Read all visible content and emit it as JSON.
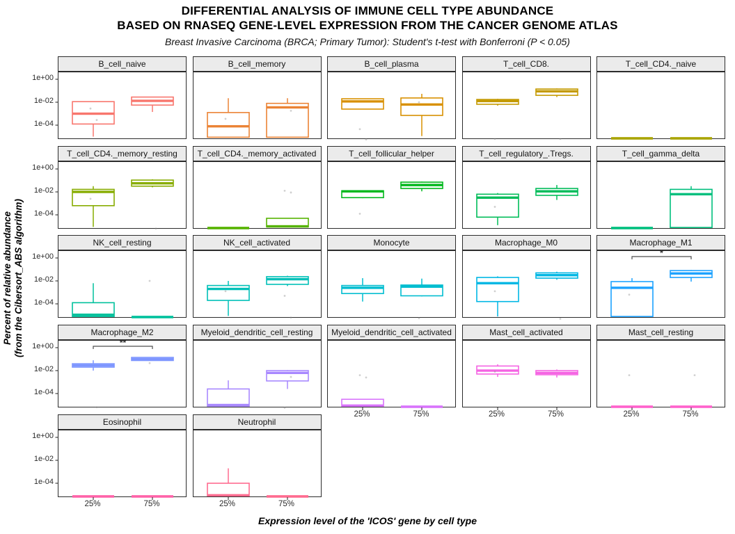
{
  "header": {
    "title_line1": "DIFFERENTIAL ANALYSIS OF IMMUNE CELL TYPE ABUNDANCE",
    "title_line2": "BASED ON RNASEQ GENE-LEVEL EXPRESSION FROM THE CANCER GENOME ATLAS",
    "subtitle": "Breast Invasive Carcinoma (BRCA; Primary Tumor): Student's t-test with Bonferroni (P < 0.05)"
  },
  "axes": {
    "y_title_line1": "Percent of relative abundance",
    "y_title_line2": "(from the Cibersort_ABS algorithm)",
    "x_title": "Expression level of the 'ICOS' gene by cell type",
    "y_tick_labels": [
      "1e+00",
      "1e-02",
      "1e-04"
    ],
    "x_tick_labels": [
      "25%",
      "75%"
    ]
  },
  "chart_data": {
    "type": "boxplot",
    "layout": "faceted grid, 5 columns, 22 panels, shared log10 y-axis",
    "y_scale": "log10 of percent relative abundance",
    "x_categories": [
      "25%",
      "75%"
    ],
    "y_ticks": [
      {
        "label": "1e+00",
        "log10": 0
      },
      {
        "label": "1e-02",
        "log10": -2
      },
      {
        "label": "1e-04",
        "log10": -4
      }
    ],
    "facets": [
      {
        "label": "B_cell_naive",
        "color": "#F8766D",
        "significance": null,
        "boxes": [
          {
            "group": "25%",
            "whisker_lo": -5.0,
            "q1": -3.9,
            "median": -3.0,
            "q3": -1.95,
            "whisker_hi": -1.95
          },
          {
            "group": "75%",
            "whisker_lo": -2.85,
            "q1": -2.25,
            "median": -1.88,
            "q3": -1.55,
            "whisker_hi": -1.55
          }
        ],
        "dots": [
          {
            "group": 0,
            "value": -2.55
          },
          {
            "group": 0,
            "value": -3.55
          }
        ]
      },
      {
        "label": "B_cell_memory",
        "color": "#EB8335",
        "significance": null,
        "boxes": [
          {
            "group": "25%",
            "whisker_lo": -5.05,
            "q1": -5.05,
            "median": -4.1,
            "q3": -2.9,
            "whisker_hi": -1.65
          },
          {
            "group": "75%",
            "whisker_lo": -5.05,
            "q1": -5.05,
            "median": -2.45,
            "q3": -2.1,
            "whisker_hi": -1.65
          }
        ],
        "dots": [
          {
            "group": 0,
            "value": -3.45
          },
          {
            "group": 1,
            "value": -2.75
          }
        ]
      },
      {
        "label": "B_cell_plasma",
        "color": "#D89000",
        "significance": null,
        "boxes": [
          {
            "group": "25%",
            "whisker_lo": -2.6,
            "q1": -2.6,
            "median": -1.93,
            "q3": -1.7,
            "whisker_hi": -1.7
          },
          {
            "group": "75%",
            "whisker_lo": -4.95,
            "q1": -3.15,
            "median": -2.2,
            "q3": -1.63,
            "whisker_hi": -1.27
          }
        ],
        "dots": [
          {
            "group": 0,
            "value": -4.35
          },
          {
            "group": 0,
            "value": -5.25
          },
          {
            "group": 1,
            "value": -2.0
          }
        ]
      },
      {
        "label": "T_cell_CD8.",
        "color": "#C49A00",
        "significance": null,
        "boxes": [
          {
            "group": "25%",
            "whisker_lo": -2.3,
            "q1": -2.18,
            "median": -1.9,
            "q3": -1.76,
            "whisker_hi": -1.7
          },
          {
            "group": "75%",
            "whisker_lo": -1.55,
            "q1": -1.4,
            "median": -1.05,
            "q3": -0.85,
            "whisker_hi": -0.8
          }
        ],
        "dots": [
          {
            "group": 0,
            "value": -5.2
          },
          {
            "group": 1,
            "value": -5.2
          }
        ]
      },
      {
        "label": "T_cell_CD4._naive",
        "color": "#A9A400",
        "significance": null,
        "boxes": [
          {
            "group": "25%",
            "whisker_lo": -5.15,
            "q1": -5.15,
            "median": -5.15,
            "q3": -5.15,
            "whisker_hi": -5.15
          },
          {
            "group": "75%",
            "whisker_lo": -5.15,
            "q1": -5.15,
            "median": -5.15,
            "q3": -5.15,
            "whisker_hi": -5.15
          }
        ],
        "dots": []
      },
      {
        "label": "T_cell_CD4._memory_resting",
        "color": "#87AC00",
        "significance": null,
        "boxes": [
          {
            "group": "25%",
            "whisker_lo": -5.05,
            "q1": -3.2,
            "median": -2.0,
            "q3": -1.78,
            "whisker_hi": -1.5
          },
          {
            "group": "75%",
            "whisker_lo": -1.6,
            "q1": -1.5,
            "median": -1.25,
            "q3": -0.97,
            "whisker_hi": -0.9
          }
        ],
        "dots": [
          {
            "group": 0,
            "value": -2.6
          },
          {
            "group": 1,
            "value": -5.2
          }
        ]
      },
      {
        "label": "T_cell_CD4._memory_activated",
        "color": "#55B300",
        "significance": null,
        "boxes": [
          {
            "group": "25%",
            "whisker_lo": -5.15,
            "q1": -5.15,
            "median": -5.15,
            "q3": -5.15,
            "whisker_hi": -5.15
          },
          {
            "group": "75%",
            "whisker_lo": -5.05,
            "q1": -5.05,
            "median": -5.0,
            "q3": -4.3,
            "whisker_hi": -4.3
          }
        ],
        "dots": [
          {
            "group": 1,
            "value": -1.9
          },
          {
            "group": 1,
            "value": -2.05
          }
        ]
      },
      {
        "label": "T_cell_follicular_helper",
        "color": "#00B81B",
        "significance": null,
        "boxes": [
          {
            "group": "25%",
            "whisker_lo": -2.55,
            "q1": -2.5,
            "median": -1.95,
            "q3": -1.9,
            "whisker_hi": -1.85
          },
          {
            "group": "75%",
            "whisker_lo": -1.95,
            "q1": -1.7,
            "median": -1.4,
            "q3": -1.15,
            "whisker_hi": -1.1
          }
        ],
        "dots": [
          {
            "group": 0,
            "value": -3.9
          }
        ]
      },
      {
        "label": "T_cell_regulatory_.Tregs.",
        "color": "#00BC59",
        "significance": null,
        "boxes": [
          {
            "group": "25%",
            "whisker_lo": -4.9,
            "q1": -4.2,
            "median": -2.5,
            "q3": -2.2,
            "whisker_hi": -2.1
          },
          {
            "group": "75%",
            "whisker_lo": -2.7,
            "q1": -2.3,
            "median": -1.95,
            "q3": -1.7,
            "whisker_hi": -1.4
          }
        ],
        "dots": [
          {
            "group": 0,
            "value": -3.3
          }
        ]
      },
      {
        "label": "T_cell_gamma_delta",
        "color": "#00BF7D",
        "significance": null,
        "boxes": [
          {
            "group": "25%",
            "whisker_lo": -5.15,
            "q1": -5.15,
            "median": -5.15,
            "q3": -5.15,
            "whisker_hi": -5.15
          },
          {
            "group": "75%",
            "whisker_lo": -5.1,
            "q1": -5.1,
            "median": -2.2,
            "q3": -1.78,
            "whisker_hi": -1.5
          }
        ],
        "dots": []
      },
      {
        "label": "NK_cell_resting",
        "color": "#00C19C",
        "significance": null,
        "boxes": [
          {
            "group": "25%",
            "whisker_lo": -5.1,
            "q1": -5.1,
            "median": -4.95,
            "q3": -3.9,
            "whisker_hi": -2.2
          },
          {
            "group": "75%",
            "whisker_lo": -5.15,
            "q1": -5.15,
            "median": -5.15,
            "q3": -5.15,
            "whisker_hi": -5.15
          }
        ],
        "dots": [
          {
            "group": 1,
            "value": -2.0
          }
        ]
      },
      {
        "label": "NK_cell_activated",
        "color": "#00C0B8",
        "significance": null,
        "boxes": [
          {
            "group": "25%",
            "whisker_lo": -5.05,
            "q1": -3.7,
            "median": -2.7,
            "q3": -2.4,
            "whisker_hi": -2.0
          },
          {
            "group": "75%",
            "whisker_lo": -2.45,
            "q1": -2.3,
            "median": -1.85,
            "q3": -1.63,
            "whisker_hi": -1.55
          }
        ],
        "dots": [
          {
            "group": 1,
            "value": -3.3
          },
          {
            "group": 1,
            "value": -5.2
          },
          {
            "group": 0,
            "value": -2.9
          }
        ]
      },
      {
        "label": "Monocyte",
        "color": "#00BDD0",
        "significance": null,
        "boxes": [
          {
            "group": "25%",
            "whisker_lo": -3.8,
            "q1": -3.1,
            "median": -2.6,
            "q3": -2.4,
            "whisker_hi": -1.76
          },
          {
            "group": "75%",
            "whisker_lo": -3.35,
            "q1": -3.3,
            "median": -2.5,
            "q3": -2.36,
            "whisker_hi": -1.8
          }
        ],
        "dots": [
          {
            "group": 1,
            "value": -5.25
          }
        ]
      },
      {
        "label": "Macrophage_M0",
        "color": "#00B7E4",
        "significance": null,
        "boxes": [
          {
            "group": "25%",
            "whisker_lo": -5.1,
            "q1": -3.8,
            "median": -2.2,
            "q3": -1.7,
            "whisker_hi": -1.6
          },
          {
            "group": "75%",
            "whisker_lo": -1.9,
            "q1": -1.76,
            "median": -1.5,
            "q3": -1.3,
            "whisker_hi": -1.2
          }
        ],
        "dots": [
          {
            "group": 0,
            "value": -2.9
          },
          {
            "group": 1,
            "value": -5.3
          }
        ]
      },
      {
        "label": "Macrophage_M1",
        "color": "#1CA2FF",
        "significance": "*",
        "boxes": [
          {
            "group": "25%",
            "whisker_lo": -5.1,
            "q1": -5.1,
            "median": -2.6,
            "q3": -2.06,
            "whisker_hi": -1.76
          },
          {
            "group": "75%",
            "whisker_lo": -2.06,
            "q1": -1.7,
            "median": -1.35,
            "q3": -1.1,
            "whisker_hi": -1.05
          }
        ],
        "dots": [
          {
            "group": 0,
            "value": -3.2
          }
        ]
      },
      {
        "label": "Macrophage_M2",
        "color": "#7E96FF",
        "significance": "**",
        "boxes": [
          {
            "group": "25%",
            "whisker_lo": -2.0,
            "q1": -1.7,
            "median": -1.55,
            "q3": -1.4,
            "whisker_hi": -1.1
          },
          {
            "group": "75%",
            "whisker_lo": -1.15,
            "q1": -1.12,
            "median": -1.0,
            "q3": -0.85,
            "whisker_hi": -0.85
          }
        ],
        "dots": [
          {
            "group": 1,
            "value": -1.35
          },
          {
            "group": 0,
            "value": -5.2
          }
        ]
      },
      {
        "label": "Myeloid_dendritic_cell_resting",
        "color": "#A888FF",
        "significance": null,
        "boxes": [
          {
            "group": "25%",
            "whisker_lo": -5.1,
            "q1": -5.1,
            "median": -5.0,
            "q3": -3.6,
            "whisker_hi": -2.85
          },
          {
            "group": "75%",
            "whisker_lo": -3.6,
            "q1": -2.9,
            "median": -2.2,
            "q3": -2.0,
            "whisker_hi": -1.95
          }
        ],
        "dots": [
          {
            "group": 1,
            "value": -5.25
          },
          {
            "group": 1,
            "value": -2.55
          }
        ]
      },
      {
        "label": "Myeloid_dendritic_cell_activated",
        "color": "#D873FC",
        "significance": null,
        "boxes": [
          {
            "group": "25%",
            "whisker_lo": -5.1,
            "q1": -5.1,
            "median": -5.05,
            "q3": -4.5,
            "whisker_hi": -4.5
          },
          {
            "group": "75%",
            "whisker_lo": -5.15,
            "q1": -5.15,
            "median": -5.15,
            "q3": -5.15,
            "whisker_hi": -5.15
          }
        ],
        "dots": [
          {
            "group": 0,
            "value": -2.4
          },
          {
            "group": 0,
            "value": -2.6
          }
        ]
      },
      {
        "label": "Mast_cell_activated",
        "color": "#F564E3",
        "significance": null,
        "boxes": [
          {
            "group": "25%",
            "whisker_lo": -2.55,
            "q1": -2.3,
            "median": -2.0,
            "q3": -1.6,
            "whisker_hi": -1.45
          },
          {
            "group": "75%",
            "whisker_lo": -2.6,
            "q1": -2.36,
            "median": -2.2,
            "q3": -2.0,
            "whisker_hi": -1.9
          }
        ],
        "dots": [
          {
            "group": 0,
            "value": -2.1
          }
        ]
      },
      {
        "label": "Mast_cell_resting",
        "color": "#FF61CC",
        "significance": null,
        "boxes": [
          {
            "group": "25%",
            "whisker_lo": -5.15,
            "q1": -5.15,
            "median": -5.15,
            "q3": -5.15,
            "whisker_hi": -5.15
          },
          {
            "group": "75%",
            "whisker_lo": -5.15,
            "q1": -5.15,
            "median": -5.15,
            "q3": -5.15,
            "whisker_hi": -5.15
          }
        ],
        "dots": [
          {
            "group": 0,
            "value": -2.4
          },
          {
            "group": 1,
            "value": -2.4
          }
        ]
      },
      {
        "label": "Eosinophil",
        "color": "#FF62A8",
        "significance": null,
        "boxes": [
          {
            "group": "25%",
            "whisker_lo": -5.15,
            "q1": -5.15,
            "median": -5.15,
            "q3": -5.15,
            "whisker_hi": -5.15
          },
          {
            "group": "75%",
            "whisker_lo": -5.15,
            "q1": -5.15,
            "median": -5.15,
            "q3": -5.15,
            "whisker_hi": -5.15
          }
        ],
        "dots": []
      },
      {
        "label": "Neutrophil",
        "color": "#FF6B8F",
        "significance": null,
        "boxes": [
          {
            "group": "25%",
            "whisker_lo": -5.1,
            "q1": -5.1,
            "median": -5.05,
            "q3": -4.0,
            "whisker_hi": -2.7
          },
          {
            "group": "75%",
            "whisker_lo": -5.15,
            "q1": -5.15,
            "median": -5.15,
            "q3": -5.15,
            "whisker_hi": -5.15
          }
        ],
        "dots": []
      }
    ]
  }
}
